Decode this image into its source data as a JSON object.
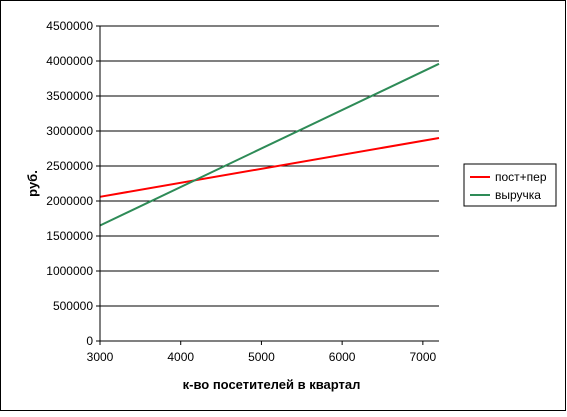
{
  "chart_data": {
    "type": "line",
    "title": "",
    "xlabel": "к-во посетителей в квартал",
    "ylabel": "руб.",
    "xlim": [
      3000,
      7200
    ],
    "ylim": [
      0,
      4500000
    ],
    "x_ticks": [
      "3000",
      "4000",
      "5000",
      "6000",
      "7000"
    ],
    "y_ticks": [
      "0",
      "500000",
      "1000000",
      "1500000",
      "2000000",
      "2500000",
      "3000000",
      "3500000",
      "4000000",
      "4500000"
    ],
    "grid": "horizontal",
    "legend_position": "right",
    "series": [
      {
        "name": "пост+пер",
        "color": "#ff0000",
        "x": [
          3000,
          7200
        ],
        "y": [
          2060000,
          2900000
        ]
      },
      {
        "name": "выручка",
        "color": "#2e8b57",
        "x": [
          3000,
          7200
        ],
        "y": [
          1650000,
          3960000
        ]
      }
    ]
  }
}
